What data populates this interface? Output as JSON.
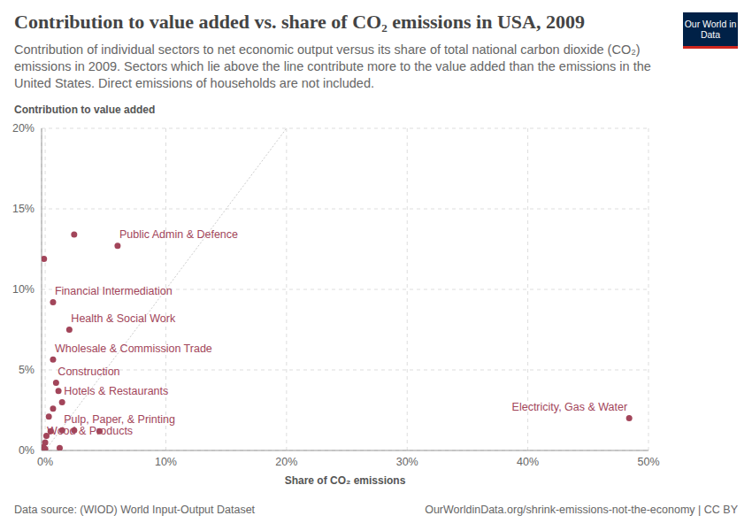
{
  "chart_data": {
    "type": "scatter",
    "title": "Contribution to value added vs. share of CO₂ emissions in USA, 2009",
    "subtitle": "Contribution of individual sectors to net economic output versus its share of total national carbon dioxide (CO₂) emissions in 2009. Sectors which lie above the line contribute more to the value added than the emissions in the United States. Direct emissions of households are not included.",
    "y_label": "Contribution to value added",
    "x_label": "Share of CO₂ emissions",
    "logo": "Our World in Data",
    "source": "Data source: (WIOD) World Input-Output Dataset",
    "url": "OurWorldinData.org/shrink-emissions-not-the-economy | CC BY",
    "color": "#a2455a",
    "grid": true,
    "x": [
      2.4,
      6.0,
      -0.1,
      0.65,
      2.0,
      0.65,
      0.9,
      1.1,
      1.4,
      0.65,
      0.3,
      48.4,
      1.4,
      2.4,
      4.5,
      0.45,
      0.1,
      0.0,
      1.2,
      -0.15,
      0.0
    ],
    "values": [
      13.4,
      12.7,
      11.9,
      9.2,
      7.5,
      5.65,
      4.2,
      3.7,
      3.0,
      2.6,
      2.1,
      2.0,
      1.25,
      1.25,
      1.2,
      1.2,
      0.9,
      0.5,
      0.15,
      0.2,
      0.1
    ],
    "labels": [
      null,
      "Public Admin & Defence",
      null,
      "Financial Intermediation",
      "Health & Social Work",
      "Wholesale & Commission Trade",
      "Construction",
      null,
      "Hotels & Restaurants",
      null,
      null,
      "Electricity, Gas & Water",
      "Pulp, Paper, & Printing",
      null,
      null,
      null,
      null,
      "Wood & Products",
      null,
      null,
      null
    ],
    "reference_line": [
      [
        0,
        0
      ],
      [
        20,
        20
      ]
    ],
    "xlim": [
      -0.3,
      50
    ],
    "xticks": [
      {
        "value": 0,
        "label": "0%"
      },
      {
        "value": 10,
        "label": "10%"
      },
      {
        "value": 20,
        "label": "20%"
      },
      {
        "value": 30,
        "label": "30%"
      },
      {
        "value": 40,
        "label": "40%"
      },
      {
        "value": 50,
        "label": "50%"
      }
    ],
    "ylim": [
      0,
      20
    ],
    "yticks": [
      {
        "value": 0,
        "label": "0%"
      },
      {
        "value": 5,
        "label": "5%"
      },
      {
        "value": 10,
        "label": "10%"
      },
      {
        "value": 15,
        "label": "15%"
      },
      {
        "value": 20,
        "label": "20%"
      }
    ]
  }
}
